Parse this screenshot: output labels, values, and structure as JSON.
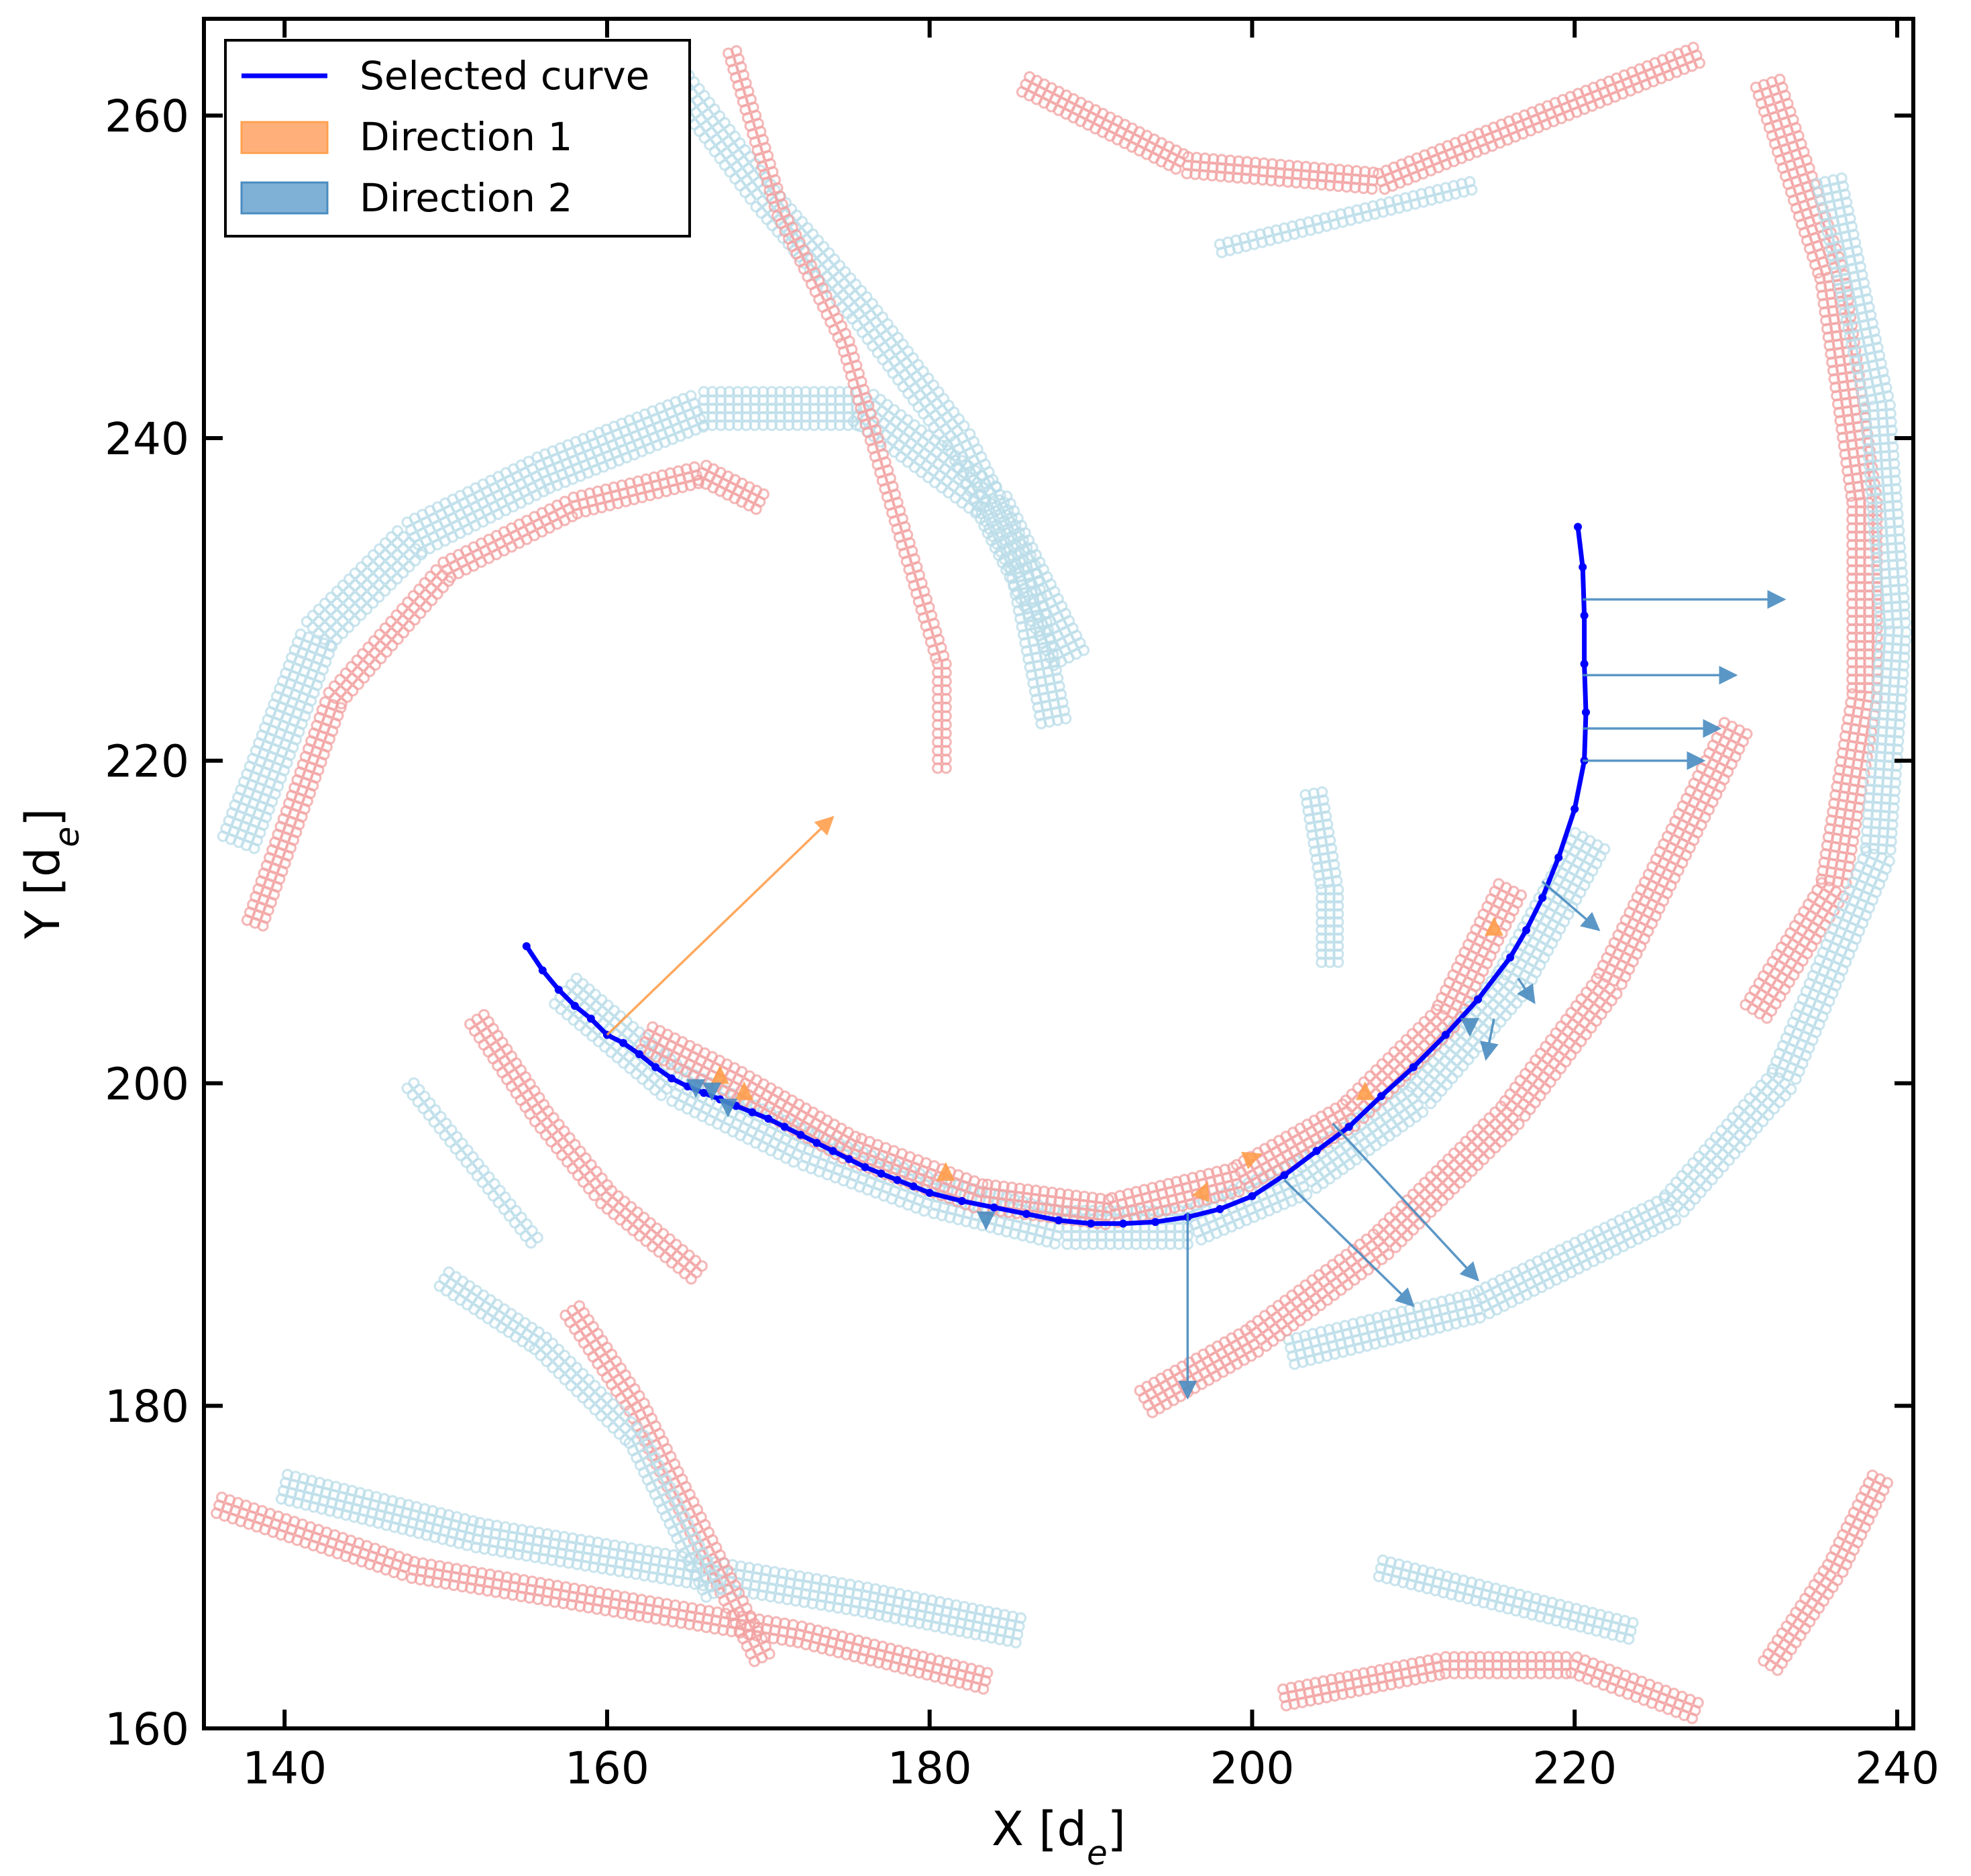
{
  "chart_data": {
    "type": "scatter",
    "xlabel": "X [d",
    "xlabel_sub": "e",
    "xlabel_end": "]",
    "ylabel": "Y [d",
    "ylabel_sub": "e",
    "ylabel_end": "]",
    "xlim": [
      135,
      241
    ],
    "ylim": [
      160,
      266
    ],
    "xticks": [
      140,
      160,
      180,
      200,
      220,
      240
    ],
    "yticks": [
      160,
      180,
      200,
      220,
      240,
      260
    ],
    "legend_position": "top-left",
    "colors": {
      "curve": "#0000ff",
      "direction1": "#ff9f4d",
      "direction2": "#4a8cc0",
      "field_pos": "#f2a0a0",
      "field_neg": "#b9dce8"
    },
    "series": [
      {
        "name": "Selected curve",
        "kind": "line",
        "points": [
          [
            155,
            208.5
          ],
          [
            156,
            207
          ],
          [
            157,
            205.8
          ],
          [
            158,
            204.8
          ],
          [
            159,
            204
          ],
          [
            160,
            203
          ],
          [
            161,
            202.5
          ],
          [
            162,
            201.8
          ],
          [
            163,
            201
          ],
          [
            164,
            200.3
          ],
          [
            165,
            199.8
          ],
          [
            166,
            199.4
          ],
          [
            167,
            199
          ],
          [
            168,
            198.6
          ],
          [
            169,
            198.2
          ],
          [
            170,
            197.8
          ],
          [
            171,
            197.3
          ],
          [
            172,
            196.8
          ],
          [
            173,
            196.3
          ],
          [
            174,
            195.8
          ],
          [
            175,
            195.3
          ],
          [
            176,
            194.8
          ],
          [
            177,
            194.4
          ],
          [
            178,
            194
          ],
          [
            179,
            193.6
          ],
          [
            180,
            193.2
          ],
          [
            182,
            192.7
          ],
          [
            184,
            192.3
          ],
          [
            186,
            191.9
          ],
          [
            188,
            191.5
          ],
          [
            190,
            191.3
          ],
          [
            192,
            191.3
          ],
          [
            194,
            191.4
          ],
          [
            196,
            191.7
          ],
          [
            198,
            192.2
          ],
          [
            200,
            193
          ],
          [
            202,
            194.3
          ],
          [
            204,
            195.8
          ],
          [
            206,
            197.3
          ],
          [
            208,
            199.2
          ],
          [
            210,
            201
          ],
          [
            212,
            203
          ],
          [
            214,
            205.2
          ],
          [
            216,
            207.8
          ],
          [
            217,
            209.5
          ],
          [
            218,
            211.5
          ],
          [
            219,
            214
          ],
          [
            220,
            217
          ],
          [
            220.6,
            220
          ],
          [
            220.7,
            223
          ],
          [
            220.6,
            226
          ],
          [
            220.6,
            229
          ],
          [
            220.5,
            232
          ],
          [
            220.2,
            234.5
          ]
        ]
      },
      {
        "name": "Direction 1",
        "kind": "arrows",
        "arrows": [
          [
            160,
            203,
            174,
            216.5
          ],
          [
            167,
            200,
            167,
            201
          ],
          [
            168.5,
            199.5,
            168.5,
            200
          ],
          [
            181,
            194.5,
            181,
            195
          ],
          [
            197,
            193.3,
            197.2,
            193.8
          ],
          [
            200,
            195.4,
            200.5,
            195.6
          ],
          [
            207,
            199.8,
            207,
            200
          ],
          [
            215,
            209.8,
            215,
            210.2
          ]
        ]
      },
      {
        "name": "Direction 2",
        "kind": "arrows",
        "arrows": [
          [
            220.5,
            230,
            233,
            230
          ],
          [
            220.5,
            225.3,
            230,
            225.3
          ],
          [
            220.5,
            222,
            229,
            222
          ],
          [
            220.5,
            220,
            228,
            220
          ],
          [
            218,
            212.5,
            221.5,
            209.5
          ],
          [
            216.5,
            206.5,
            217.5,
            205
          ],
          [
            215,
            204,
            214.5,
            201.5
          ],
          [
            213.5,
            204,
            213.5,
            203
          ],
          [
            205,
            197.5,
            214,
            187.8
          ],
          [
            202,
            194,
            210,
            186.2
          ],
          [
            196,
            192,
            196,
            180.5
          ],
          [
            183.5,
            191.5,
            183.5,
            191
          ],
          [
            167.5,
            198.5,
            167.5,
            198
          ],
          [
            166.5,
            199.2,
            166.5,
            199
          ],
          [
            165.5,
            199.5,
            165.5,
            199.2
          ]
        ]
      }
    ]
  }
}
